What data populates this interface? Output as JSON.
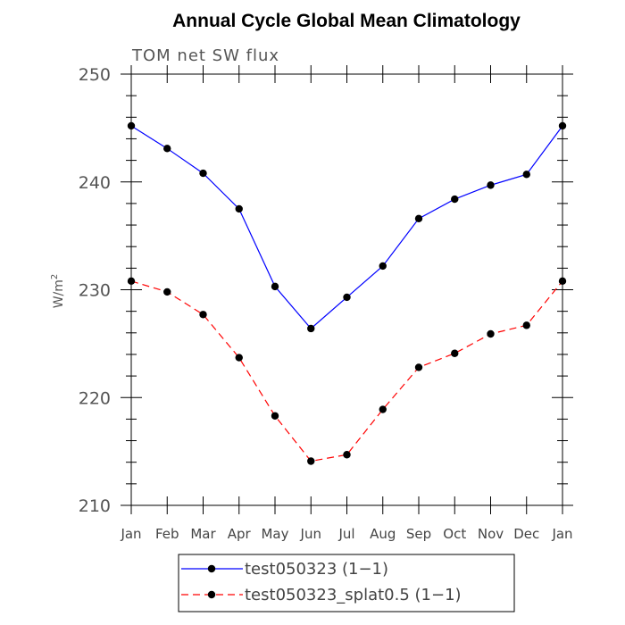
{
  "chart_data": {
    "type": "line",
    "title": "Annual Cycle Global Mean Climatology",
    "subtitle": "TOM net SW flux",
    "ylabel": "W/m",
    "ylabel_sup": "2",
    "xlabel": "",
    "categories": [
      "Jan",
      "Feb",
      "Mar",
      "Apr",
      "May",
      "Jun",
      "Jul",
      "Aug",
      "Sep",
      "Oct",
      "Nov",
      "Dec",
      "Jan"
    ],
    "ylim": [
      210,
      250
    ],
    "yticks": [
      210,
      220,
      230,
      240,
      250
    ],
    "grid": false,
    "legend_position": "bottom",
    "series": [
      {
        "name": "test050323 (1−1)",
        "color": "#0000ff",
        "dash": "solid",
        "marker": "filled-circle",
        "values": [
          245.2,
          243.1,
          240.8,
          237.5,
          230.3,
          226.4,
          229.3,
          232.2,
          236.6,
          238.4,
          239.7,
          240.7,
          245.2
        ]
      },
      {
        "name": "test050323_splat0.5 (1−1)",
        "color": "#ff0000",
        "dash": "dashed",
        "marker": "filled-circle",
        "values": [
          230.8,
          229.8,
          227.7,
          223.7,
          218.3,
          214.1,
          214.7,
          218.9,
          222.8,
          224.1,
          225.9,
          226.7,
          230.8
        ]
      }
    ]
  }
}
